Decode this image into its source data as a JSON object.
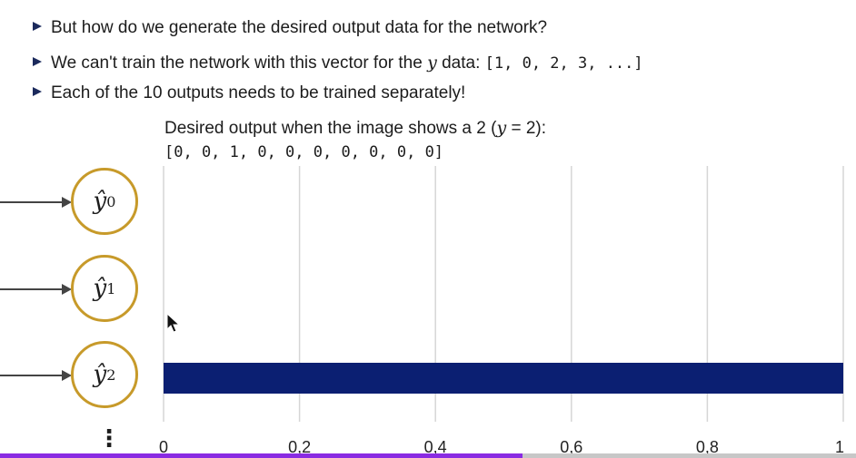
{
  "bullets": [
    {
      "text": "But how do we generate the desired output data for the network?"
    },
    {
      "pre": "We can't train the network with this vector for the ",
      "var": "y",
      "mid": " data: ",
      "code": "[1, 0, 2, 3, ...]"
    },
    {
      "text": "Each of the 10 outputs needs to be trained separately!"
    }
  ],
  "subtitle": {
    "pre": "Desired output when the image shows a 2 (",
    "var": "y",
    "post": " = 2):"
  },
  "vector": "[0, 0, 1, 0, 0, 0, 0, 0, 0, 0]",
  "nodes": [
    {
      "symbol": "ŷ",
      "sub": "0"
    },
    {
      "symbol": "ŷ",
      "sub": "1"
    },
    {
      "symbol": "ŷ",
      "sub": "2"
    }
  ],
  "ellipsis": "⋮",
  "colors": {
    "bar": "#0b1f72",
    "node_border": "#c79a2a",
    "bullet": "#1b2a5c",
    "progress": "#8a2be2"
  },
  "chart_data": {
    "type": "bar",
    "orientation": "horizontal",
    "categories": [
      "ŷ0",
      "ŷ1",
      "ŷ2"
    ],
    "values": [
      0,
      0,
      1
    ],
    "xlim": [
      0,
      1
    ],
    "xticks": [
      "0",
      "0,2",
      "0,4",
      "0,6",
      "0,8",
      "1"
    ],
    "grid": true
  },
  "video_progress": 0.61
}
